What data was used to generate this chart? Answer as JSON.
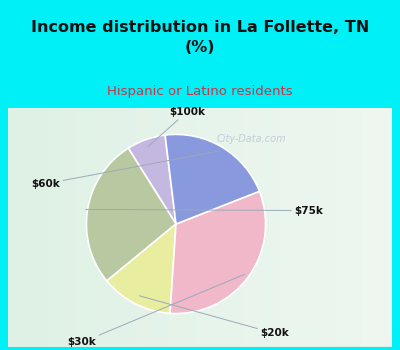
{
  "title": "Income distribution in La Follette, TN\n(%)",
  "subtitle": "Hispanic or Latino residents",
  "slices": [
    {
      "label": "$100k",
      "value": 7,
      "color": "#c5b8e0"
    },
    {
      "label": "$75k",
      "value": 27,
      "color": "#b8c8a0"
    },
    {
      "label": "$20k",
      "value": 13,
      "color": "#e8eda0"
    },
    {
      "label": "$30k",
      "value": 32,
      "color": "#f0b8c8"
    },
    {
      "label": "$60k",
      "value": 21,
      "color": "#8899dd"
    }
  ],
  "bg_color": "#00f0f8",
  "title_color": "#111111",
  "subtitle_color": "#cc3344",
  "label_color": "#111111",
  "watermark": "City-Data.com",
  "start_angle": 97,
  "chart_bg_left": "#c8e8d0",
  "chart_bg_right": "#e8f4f0"
}
